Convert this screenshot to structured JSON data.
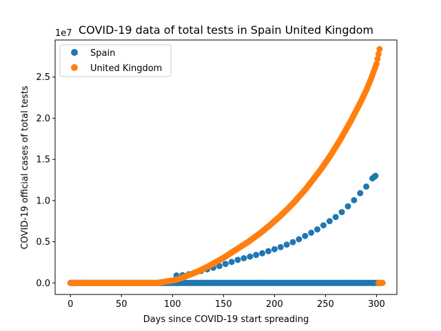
{
  "chart_data": {
    "type": "scatter",
    "title": "COVID-19 data of total tests in Spain United Kingdom",
    "xlabel": "Days since COVID-19 start spreading",
    "ylabel": "COVID-19 official cases of total tests",
    "y_offset_label": "1e7",
    "xlim": [
      -15,
      320
    ],
    "ylim": [
      -1400000,
      29500000
    ],
    "x_ticks": [
      0,
      50,
      100,
      150,
      200,
      250,
      300
    ],
    "y_ticks": [
      0,
      5000000,
      10000000,
      15000000,
      20000000,
      25000000
    ],
    "y_tick_labels": [
      "0.0",
      "0.5",
      "1.0",
      "1.5",
      "2.0",
      "2.5"
    ],
    "legend_position": "top-left",
    "grid": false,
    "series": [
      {
        "name": "Spain",
        "color": "#1f77b4",
        "zero_range": [
          0,
          304
        ],
        "points": [
          [
            104,
            900000
          ],
          [
            110,
            950000
          ],
          [
            116,
            1050000
          ],
          [
            122,
            1250000
          ],
          [
            128,
            1450000
          ],
          [
            134,
            1650000
          ],
          [
            140,
            1850000
          ],
          [
            146,
            2050000
          ],
          [
            152,
            2300000
          ],
          [
            158,
            2550000
          ],
          [
            164,
            2800000
          ],
          [
            170,
            3000000
          ],
          [
            176,
            3200000
          ],
          [
            182,
            3400000
          ],
          [
            188,
            3600000
          ],
          [
            194,
            3850000
          ],
          [
            200,
            4100000
          ],
          [
            206,
            4350000
          ],
          [
            212,
            4650000
          ],
          [
            218,
            4950000
          ],
          [
            224,
            5300000
          ],
          [
            230,
            5700000
          ],
          [
            236,
            6100000
          ],
          [
            242,
            6500000
          ],
          [
            248,
            7000000
          ],
          [
            254,
            7500000
          ],
          [
            260,
            8000000
          ],
          [
            266,
            8600000
          ],
          [
            272,
            9300000
          ],
          [
            278,
            10050000
          ],
          [
            284,
            10900000
          ],
          [
            290,
            11700000
          ],
          [
            296,
            12700000
          ],
          [
            298,
            12900000
          ],
          [
            299,
            13000000
          ]
        ]
      },
      {
        "name": "United Kingdom",
        "color": "#ff7f0e",
        "curve": [
          [
            0,
            0
          ],
          [
            85,
            0
          ],
          [
            90,
            100000
          ],
          [
            95,
            200000
          ],
          [
            100,
            300000
          ],
          [
            105,
            450000
          ],
          [
            110,
            650000
          ],
          [
            115,
            900000
          ],
          [
            120,
            1150000
          ],
          [
            125,
            1400000
          ],
          [
            130,
            1700000
          ],
          [
            135,
            2000000
          ],
          [
            140,
            2350000
          ],
          [
            145,
            2700000
          ],
          [
            150,
            3050000
          ],
          [
            155,
            3450000
          ],
          [
            160,
            3850000
          ],
          [
            165,
            4250000
          ],
          [
            170,
            4650000
          ],
          [
            175,
            5050000
          ],
          [
            180,
            5500000
          ],
          [
            185,
            5950000
          ],
          [
            190,
            6450000
          ],
          [
            195,
            6950000
          ],
          [
            200,
            7500000
          ],
          [
            205,
            8050000
          ],
          [
            210,
            8650000
          ],
          [
            215,
            9250000
          ],
          [
            220,
            9900000
          ],
          [
            225,
            10600000
          ],
          [
            230,
            11300000
          ],
          [
            235,
            12100000
          ],
          [
            240,
            12900000
          ],
          [
            245,
            13700000
          ],
          [
            250,
            14600000
          ],
          [
            255,
            15500000
          ],
          [
            260,
            16500000
          ],
          [
            265,
            17500000
          ],
          [
            270,
            18600000
          ],
          [
            275,
            19700000
          ],
          [
            280,
            20900000
          ],
          [
            285,
            22100000
          ],
          [
            290,
            23400000
          ],
          [
            295,
            24900000
          ],
          [
            300,
            26600000
          ],
          [
            303,
            28400000
          ]
        ],
        "tail_zero": [
          302,
          306
        ]
      }
    ]
  }
}
